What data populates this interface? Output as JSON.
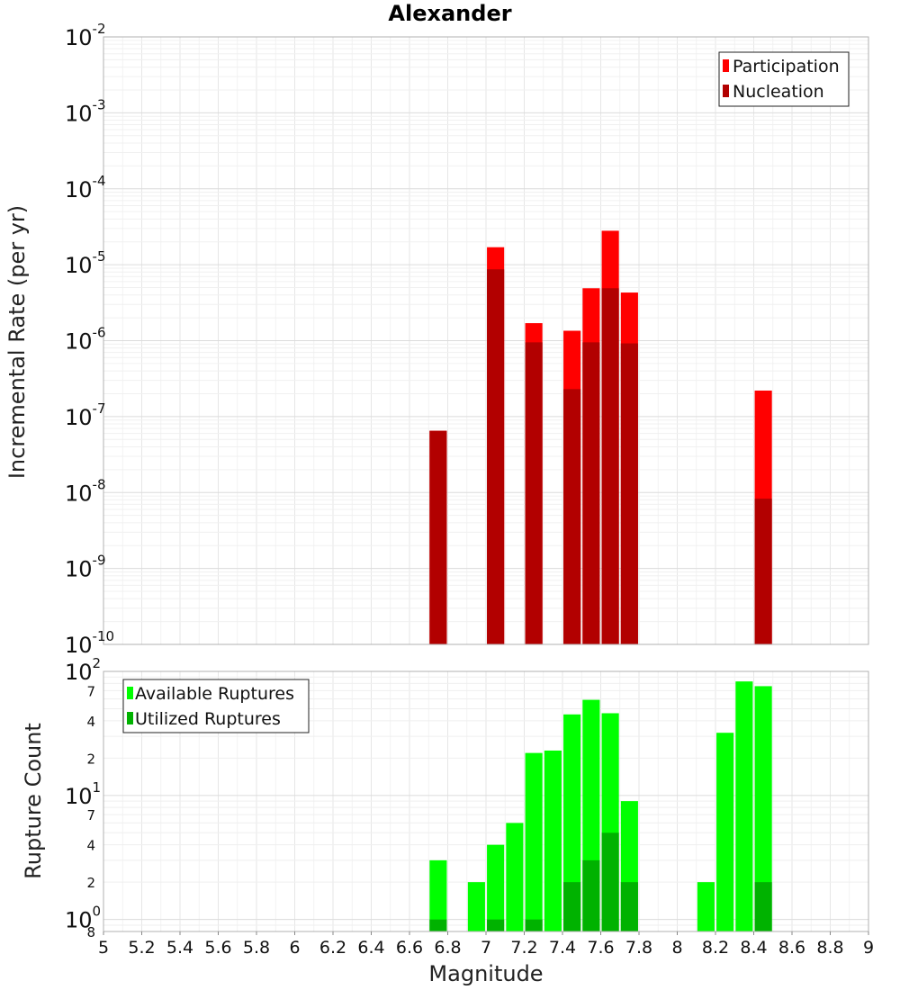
{
  "chart_data": {
    "title": "Alexander",
    "xlabel": "Magnitude",
    "xlim": [
      5,
      9
    ],
    "x_ticks": [
      "5",
      "5.2",
      "5.4",
      "5.6",
      "5.8",
      "6",
      "6.2",
      "6.4",
      "6.6",
      "6.8",
      "7",
      "7.2",
      "7.4",
      "7.6",
      "7.8",
      "8",
      "8.2",
      "8.4",
      "8.6",
      "8.8",
      "9"
    ],
    "bar_width": 0.09,
    "panels": [
      {
        "type": "bar",
        "ylabel": "Incremental Rate (per yr)",
        "yscale": "log",
        "ylim": [
          1e-10,
          0.01
        ],
        "grid": true,
        "legend_placement": "top-right",
        "y_ticks": [
          {
            "base": "10",
            "exp": "-2"
          },
          {
            "base": "10",
            "exp": "-3"
          },
          {
            "base": "10",
            "exp": "-4"
          },
          {
            "base": "10",
            "exp": "-5"
          },
          {
            "base": "10",
            "exp": "-6"
          },
          {
            "base": "10",
            "exp": "-7"
          },
          {
            "base": "10",
            "exp": "-8"
          },
          {
            "base": "10",
            "exp": "-9"
          },
          {
            "base": "10",
            "exp": "-10"
          }
        ],
        "series": [
          {
            "name": "Participation",
            "color": "#ff0000",
            "x": [
              6.75,
              7.05,
              7.25,
              7.45,
              7.55,
              7.65,
              7.75,
              8.45
            ],
            "values": [
              6.5e-08,
              1.7e-05,
              1.7e-06,
              1.35e-06,
              4.9e-06,
              2.8e-05,
              4.3e-06,
              2.2e-07
            ]
          },
          {
            "name": "Nucleation",
            "color": "#b20000",
            "x": [
              6.75,
              7.05,
              7.25,
              7.45,
              7.55,
              7.65,
              7.75,
              8.45
            ],
            "values": [
              6.5e-08,
              8.7e-06,
              9.5e-07,
              2.3e-07,
              9.5e-07,
              4.9e-06,
              9.2e-07,
              8.3e-09
            ]
          }
        ]
      },
      {
        "type": "bar",
        "ylabel": "Rupture Count",
        "yscale": "log",
        "ylim": [
          0.8,
          100
        ],
        "grid": true,
        "legend_placement": "top-left",
        "y_major_ticks": [
          {
            "value": 100,
            "base": "10",
            "exp": "2"
          },
          {
            "value": 10,
            "base": "10",
            "exp": "1"
          },
          {
            "value": 1,
            "base": "10",
            "exp": "0"
          }
        ],
        "y_minor_ticks": [
          {
            "value": 70,
            "label": "7"
          },
          {
            "value": 40,
            "label": "4"
          },
          {
            "value": 20,
            "label": "2"
          },
          {
            "value": 7,
            "label": "7"
          },
          {
            "value": 4,
            "label": "4"
          },
          {
            "value": 2,
            "label": "2"
          },
          {
            "value": 0.8,
            "label": "8"
          }
        ],
        "series": [
          {
            "name": "Available Ruptures",
            "color": "#00ff00",
            "x": [
              6.75,
              6.95,
              7.05,
              7.15,
              7.25,
              7.35,
              7.45,
              7.55,
              7.65,
              7.75,
              8.15,
              8.25,
              8.35,
              8.45
            ],
            "values": [
              3,
              2,
              4,
              6,
              22,
              23,
              45,
              59,
              46,
              9,
              2,
              32,
              83,
              76
            ]
          },
          {
            "name": "Utilized Ruptures",
            "color": "#00b200",
            "x": [
              6.75,
              7.05,
              7.25,
              7.45,
              7.55,
              7.65,
              7.75,
              8.45
            ],
            "values": [
              1,
              1,
              1,
              2,
              3,
              5,
              2,
              2
            ]
          }
        ]
      }
    ]
  }
}
